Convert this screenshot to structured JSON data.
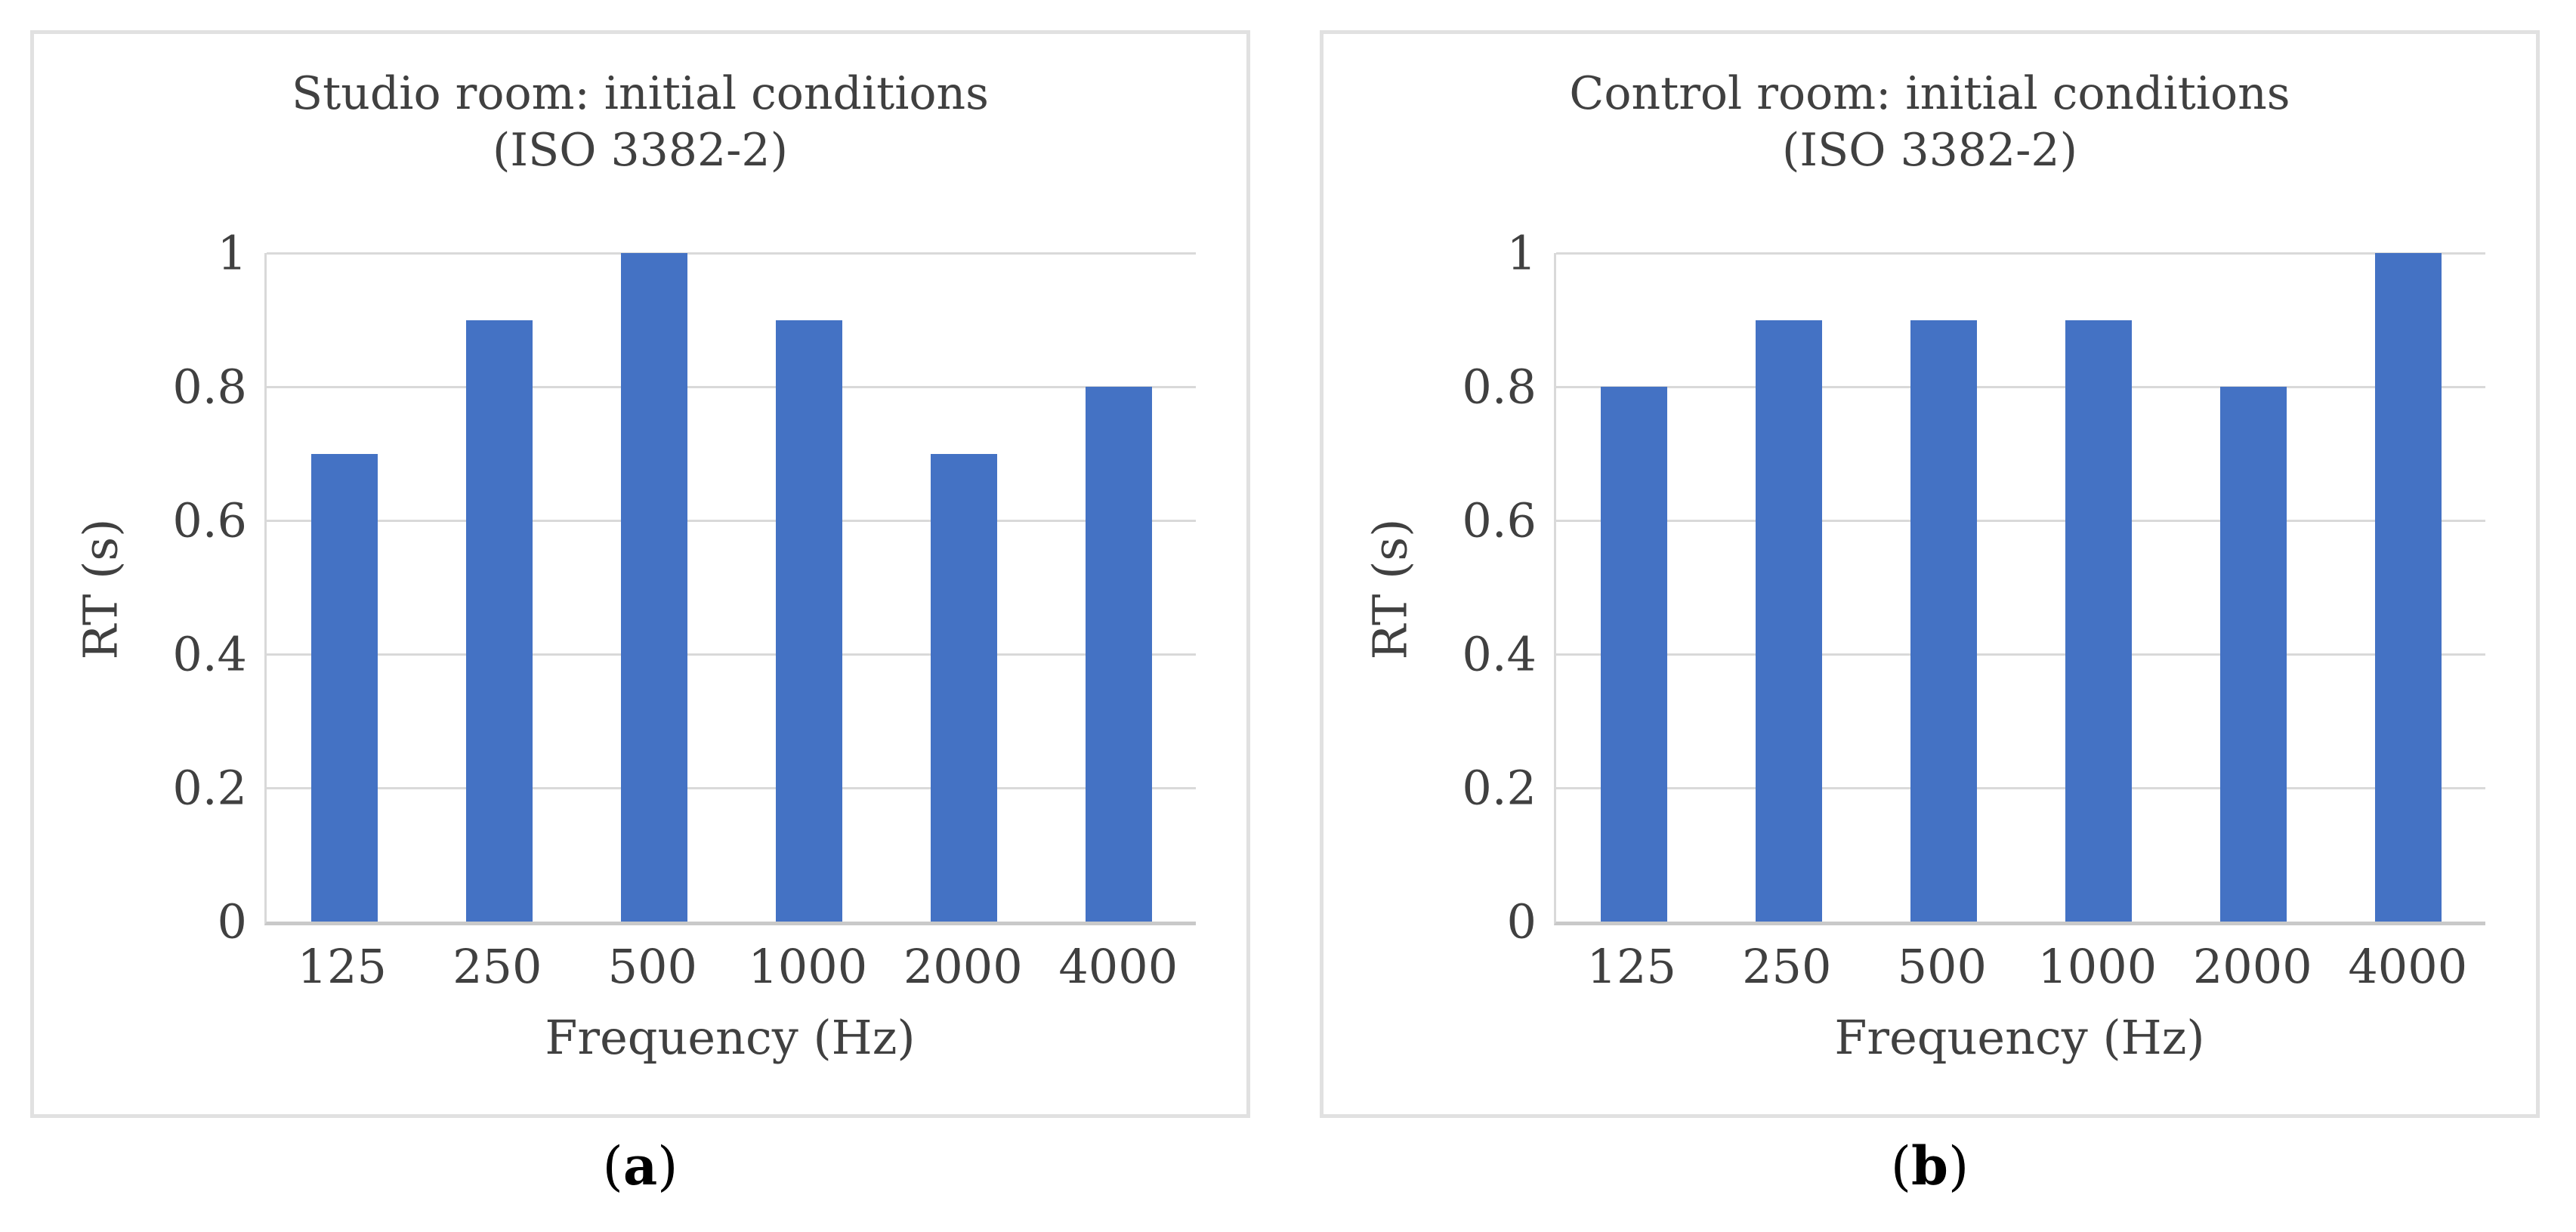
{
  "chart_data": [
    {
      "type": "bar",
      "title": "Studio room: initial conditions (ISO 3382-2)",
      "title_line1": "Studio room: initial conditions",
      "title_line2": "(ISO 3382-2)",
      "categories": [
        "125",
        "250",
        "500",
        "1000",
        "2000",
        "4000"
      ],
      "values": [
        0.7,
        0.9,
        1.0,
        0.9,
        0.7,
        0.8
      ],
      "xlabel": "Frequency (Hz)",
      "ylabel": "RT (s)",
      "ylim": [
        0,
        1
      ],
      "yticks": [
        0,
        0.2,
        0.4,
        0.6,
        0.8,
        1
      ],
      "ytick_labels": [
        "0",
        "0.2",
        "0.4",
        "0.6",
        "0.8",
        "1"
      ],
      "grid": true,
      "legend": "none",
      "bar_color": "#4472C4",
      "gridline_color": "#d9d9d9",
      "axis_line_color": "#c9c9c9",
      "yaxis_line_color": "#d9d9d9",
      "caption": {
        "open": "(",
        "letter": "a",
        "close": ")"
      }
    },
    {
      "type": "bar",
      "title": "Control room: initial conditions (ISO 3382-2)",
      "title_line1": "Control room: initial conditions",
      "title_line2": "(ISO 3382-2)",
      "categories": [
        "125",
        "250",
        "500",
        "1000",
        "2000",
        "4000"
      ],
      "values": [
        0.8,
        0.9,
        0.9,
        0.9,
        0.8,
        1.0
      ],
      "xlabel": "Frequency (Hz)",
      "ylabel": "RT (s)",
      "ylim": [
        0,
        1
      ],
      "yticks": [
        0,
        0.2,
        0.4,
        0.6,
        0.8,
        1
      ],
      "ytick_labels": [
        "0",
        "0.2",
        "0.4",
        "0.6",
        "0.8",
        "1"
      ],
      "grid": true,
      "legend": "none",
      "bar_color": "#4472C4",
      "gridline_color": "#d9d9d9",
      "axis_line_color": "#c9c9c9",
      "yaxis_line_color": "#d9d9d9",
      "caption": {
        "open": "(",
        "letter": "b",
        "close": ")"
      }
    }
  ]
}
